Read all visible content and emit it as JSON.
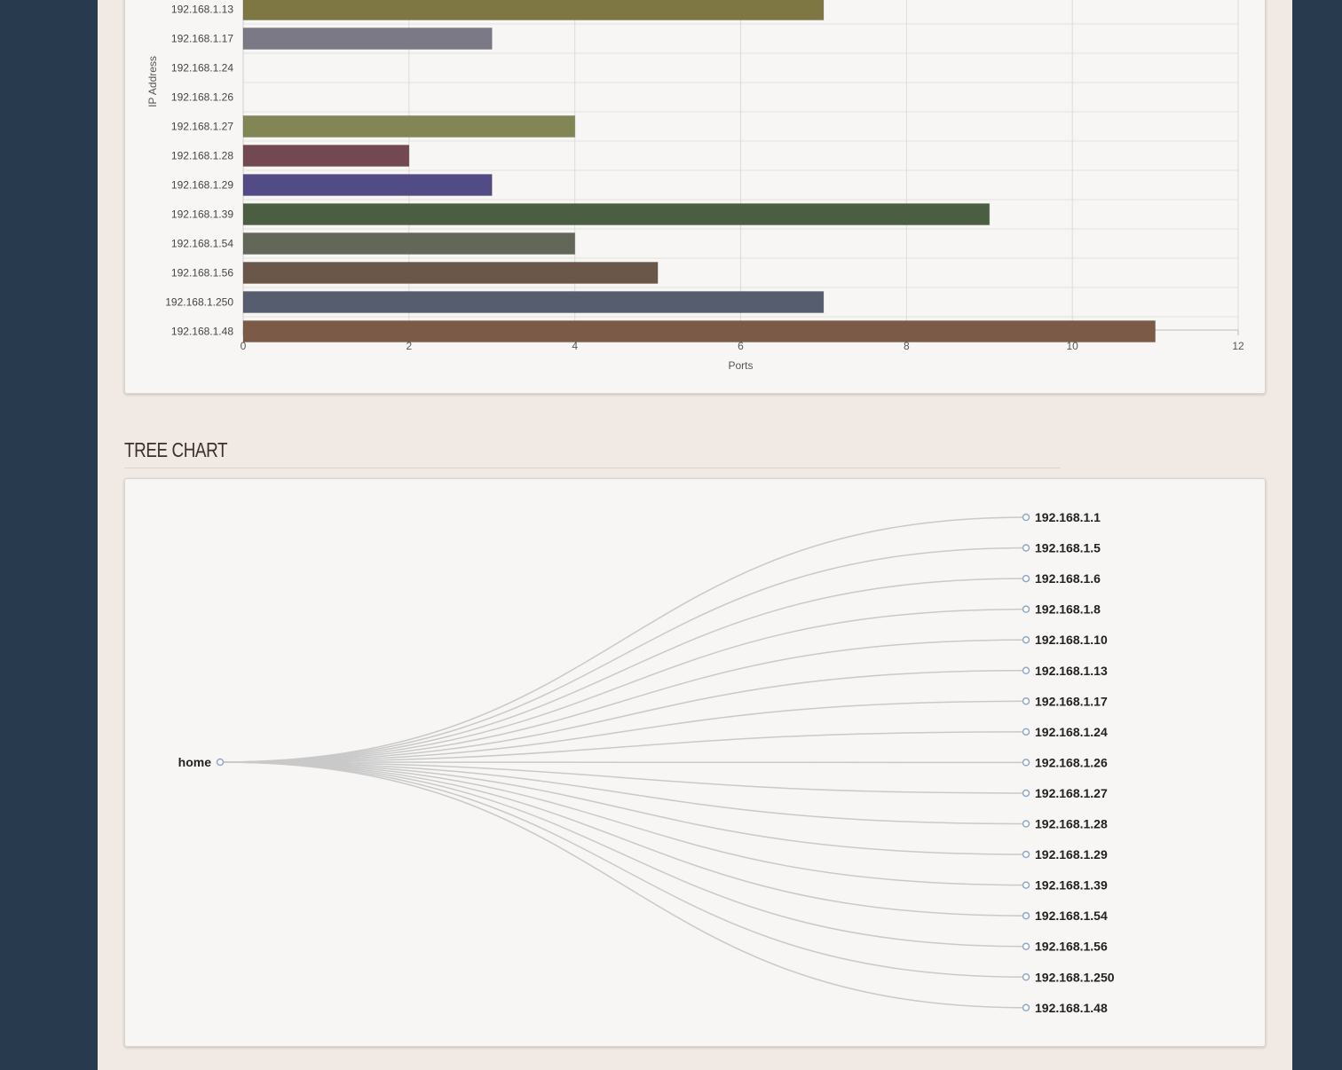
{
  "bar_section": {
    "chart_data": {
      "type": "bar",
      "orientation": "horizontal",
      "xlabel": "Ports",
      "ylabel": "IP Address",
      "xlim": [
        0,
        12
      ],
      "xticks": [
        0,
        2,
        4,
        6,
        8,
        10,
        12
      ],
      "grid": true,
      "categories": [
        "192.168.1.13",
        "192.168.1.17",
        "192.168.1.24",
        "192.168.1.26",
        "192.168.1.27",
        "192.168.1.28",
        "192.168.1.29",
        "192.168.1.39",
        "192.168.1.54",
        "192.168.1.56",
        "192.168.1.250",
        "192.168.1.48"
      ],
      "values": [
        7,
        3,
        0,
        0,
        4,
        2,
        3,
        9,
        4,
        5,
        7,
        11
      ],
      "colors": [
        "#7e7744",
        "#7b7986",
        "#8f8c83",
        "#8f8c83",
        "#828655",
        "#724853",
        "#524b85",
        "#4b5e42",
        "#63675a",
        "#6a5749",
        "#565d6e",
        "#7b5b47"
      ]
    }
  },
  "tree_section": {
    "title": "TREE CHART",
    "chart_data": {
      "type": "tree",
      "root": "home",
      "children": [
        "192.168.1.1",
        "192.168.1.5",
        "192.168.1.6",
        "192.168.1.8",
        "192.168.1.10",
        "192.168.1.13",
        "192.168.1.17",
        "192.168.1.24",
        "192.168.1.26",
        "192.168.1.27",
        "192.168.1.28",
        "192.168.1.29",
        "192.168.1.39",
        "192.168.1.54",
        "192.168.1.56",
        "192.168.1.250",
        "192.168.1.48"
      ],
      "node_color": "#8fa8c8",
      "link_color": "#c9c9c9"
    }
  }
}
